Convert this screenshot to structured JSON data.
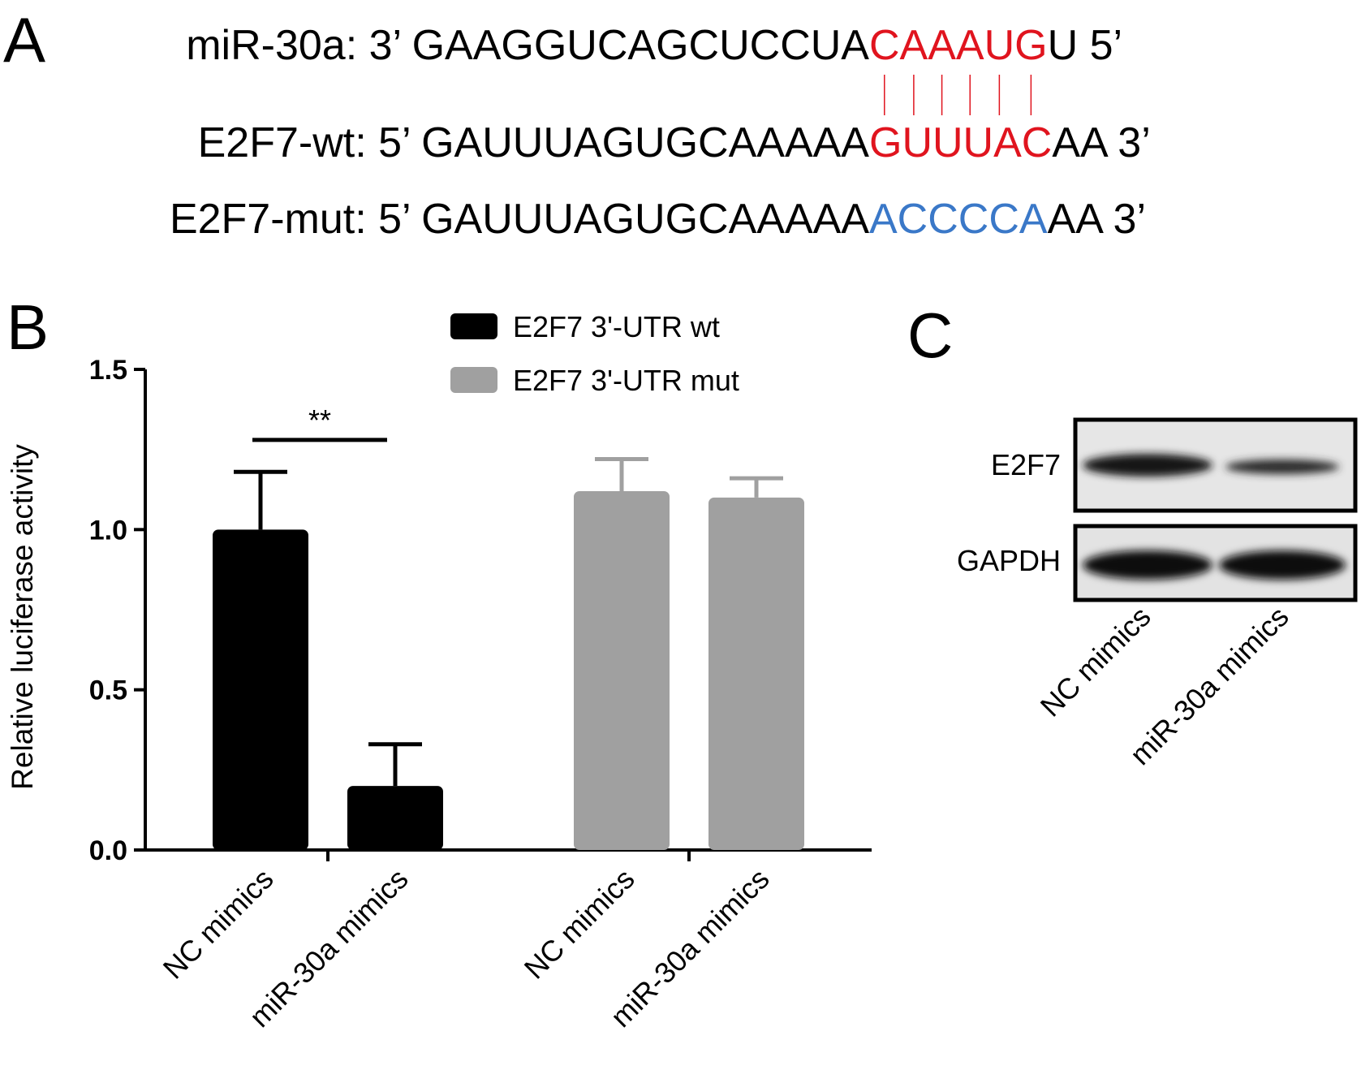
{
  "panel_a": {
    "label": "A",
    "rows": [
      {
        "segments": [
          {
            "text": "miR-30a: 3’ GAAGGUCAGCUCCUA"
          },
          {
            "text": "CAAAUG",
            "color": "#e0141e"
          },
          {
            "text": "U 5’"
          }
        ]
      },
      {
        "segments": [
          {
            "text": "E2F7-wt: 5’ GAUUUAGUGCAAAAA"
          },
          {
            "text": "GUUUAC",
            "color": "#e0141e"
          },
          {
            "text": "AA 3’"
          }
        ]
      },
      {
        "segments": [
          {
            "text": "E2F7-mut: 5’ GAUUUAGUGCAAAAA"
          },
          {
            "text": "ACCCCA",
            "color": "#3a78c8"
          },
          {
            "text": "AA 3’"
          }
        ]
      }
    ]
  },
  "chart_data": {
    "type": "bar",
    "panel_label": "B",
    "y_label": "Relative luciferase activity",
    "categories": [
      "NC mimics",
      "miR-30a mimics",
      "NC mimics",
      "miR-30a mimics"
    ],
    "series": [
      {
        "name": "E2F7 3'-UTR wt",
        "color": "#000000",
        "values": [
          1.0,
          0.2,
          null,
          null
        ],
        "errors": [
          0.18,
          0.13,
          null,
          null
        ]
      },
      {
        "name": "E2F7 3'-UTR mut",
        "color": "#a0a0a0",
        "values": [
          null,
          null,
          1.12,
          1.1
        ],
        "errors": [
          null,
          null,
          0.1,
          0.06
        ]
      }
    ],
    "ylim": [
      0,
      1.5
    ],
    "yticks": [
      {
        "value": 0,
        "label": "0.0"
      },
      {
        "value": 0.5,
        "label": "0.5"
      },
      {
        "value": 1,
        "label": "1.0"
      },
      {
        "value": 1.5,
        "label": "1.5"
      }
    ],
    "annotation": "**"
  },
  "panel_c": {
    "label": "C",
    "rows": [
      "E2F7",
      "GAPDH"
    ],
    "lanes": [
      "NC mimics",
      "miR-30a mimics"
    ]
  }
}
